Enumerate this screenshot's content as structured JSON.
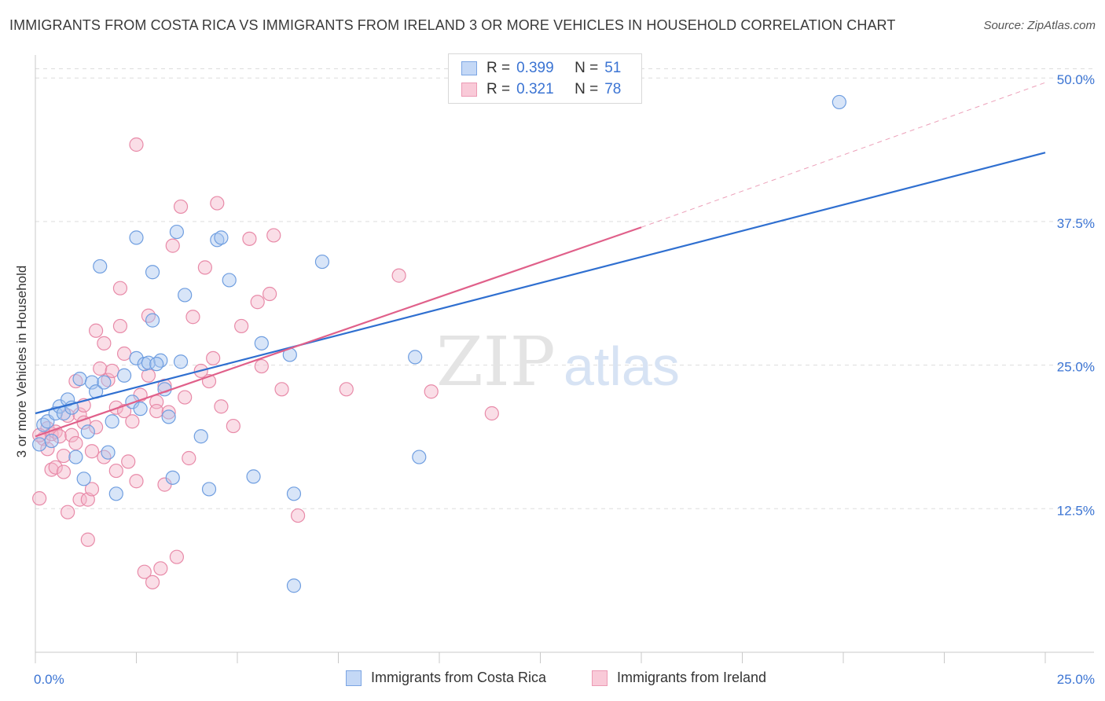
{
  "title": "IMMIGRANTS FROM COSTA RICA VS IMMIGRANTS FROM IRELAND 3 OR MORE VEHICLES IN HOUSEHOLD CORRELATION CHART",
  "source": "Source: ZipAtlas.com",
  "legend": {
    "rows": [
      {
        "r_label": "R =",
        "r_value": "0.399",
        "n_label": "N =",
        "n_value": "51"
      },
      {
        "r_label": "R =",
        "r_value": "0.321",
        "n_label": "N =",
        "n_value": "78"
      }
    ]
  },
  "colors": {
    "blue_fill": "#a9c6f0",
    "blue_stroke": "#6f9ee0",
    "blue_line": "#2f6fd0",
    "pink_fill": "#f5b6c9",
    "pink_stroke": "#e88aa8",
    "pink_line": "#e0608a",
    "tick_label": "#3b74d3",
    "grid": "#dddddd"
  },
  "chart_data": {
    "type": "scatter",
    "title": "IMMIGRANTS FROM COSTA RICA VS IMMIGRANTS FROM IRELAND 3 OR MORE VEHICLES IN HOUSEHOLD CORRELATION CHART",
    "xlabel": "",
    "ylabel": "3 or more Vehicles in Household",
    "xlim": [
      0,
      25
    ],
    "ylim": [
      0,
      52
    ],
    "x_tick_labels": [
      "0.0%",
      "25.0%"
    ],
    "y_ticks": [
      12.5,
      25.0,
      37.5,
      50.0
    ],
    "y_tick_labels": [
      "12.5%",
      "25.0%",
      "37.5%",
      "50.0%"
    ],
    "watermark": "ZIPatlas",
    "series": [
      {
        "name": "Immigrants from Costa Rica",
        "color": "blue",
        "trend": {
          "x": [
            0,
            25
          ],
          "y": [
            20.8,
            43.5
          ],
          "dashed_extension": false
        },
        "points": [
          [
            0.1,
            18.1
          ],
          [
            0.2,
            19.8
          ],
          [
            0.3,
            20.1
          ],
          [
            0.4,
            18.4
          ],
          [
            0.5,
            20.8
          ],
          [
            0.6,
            21.4
          ],
          [
            0.7,
            20.8
          ],
          [
            0.8,
            22.0
          ],
          [
            0.9,
            21.3
          ],
          [
            1.0,
            17.0
          ],
          [
            1.1,
            23.8
          ],
          [
            1.2,
            15.1
          ],
          [
            1.3,
            19.2
          ],
          [
            1.4,
            23.5
          ],
          [
            1.5,
            22.7
          ],
          [
            1.6,
            33.6
          ],
          [
            1.7,
            23.5
          ],
          [
            1.8,
            17.4
          ],
          [
            1.9,
            20.1
          ],
          [
            2.0,
            13.8
          ],
          [
            2.2,
            24.1
          ],
          [
            2.4,
            21.8
          ],
          [
            2.5,
            25.6
          ],
          [
            2.5,
            36.1
          ],
          [
            2.6,
            21.2
          ],
          [
            2.7,
            25.1
          ],
          [
            2.8,
            25.2
          ],
          [
            2.9,
            33.1
          ],
          [
            2.9,
            28.9
          ],
          [
            3.1,
            25.4
          ],
          [
            3.2,
            22.9
          ],
          [
            3.3,
            20.5
          ],
          [
            3.4,
            15.2
          ],
          [
            3.5,
            36.6
          ],
          [
            3.6,
            25.3
          ],
          [
            3.7,
            31.1
          ],
          [
            4.1,
            18.8
          ],
          [
            4.3,
            14.2
          ],
          [
            4.5,
            35.9
          ],
          [
            4.6,
            36.1
          ],
          [
            4.8,
            32.4
          ],
          [
            5.4,
            15.3
          ],
          [
            5.6,
            26.9
          ],
          [
            6.3,
            25.9
          ],
          [
            6.4,
            13.8
          ],
          [
            6.4,
            5.8
          ],
          [
            7.1,
            34.0
          ],
          [
            9.4,
            25.7
          ],
          [
            9.5,
            17.0
          ],
          [
            19.9,
            47.9
          ],
          [
            3.0,
            25.1
          ]
        ]
      },
      {
        "name": "Immigrants from Ireland",
        "color": "pink",
        "trend": {
          "x": [
            0,
            15
          ],
          "y": [
            18.8,
            37.0
          ],
          "dashed_extension": true,
          "extension_to": [
            25,
            49.6
          ]
        },
        "points": [
          [
            0.1,
            13.4
          ],
          [
            0.2,
            18.6
          ],
          [
            0.3,
            19.5
          ],
          [
            0.3,
            17.7
          ],
          [
            0.4,
            19.0
          ],
          [
            0.4,
            15.9
          ],
          [
            0.5,
            16.1
          ],
          [
            0.5,
            19.2
          ],
          [
            0.6,
            18.8
          ],
          [
            0.7,
            17.1
          ],
          [
            0.7,
            15.7
          ],
          [
            0.8,
            20.6
          ],
          [
            0.8,
            12.2
          ],
          [
            0.9,
            18.9
          ],
          [
            1.0,
            23.6
          ],
          [
            1.0,
            18.2
          ],
          [
            1.1,
            20.7
          ],
          [
            1.1,
            13.3
          ],
          [
            1.2,
            21.5
          ],
          [
            1.2,
            20.0
          ],
          [
            1.3,
            13.3
          ],
          [
            1.3,
            9.8
          ],
          [
            1.4,
            17.5
          ],
          [
            1.4,
            14.2
          ],
          [
            1.5,
            28.0
          ],
          [
            1.5,
            19.6
          ],
          [
            1.6,
            24.7
          ],
          [
            1.7,
            26.9
          ],
          [
            1.7,
            17.0
          ],
          [
            1.8,
            23.7
          ],
          [
            1.9,
            24.5
          ],
          [
            2.0,
            21.3
          ],
          [
            2.0,
            15.8
          ],
          [
            2.1,
            31.7
          ],
          [
            2.1,
            28.4
          ],
          [
            2.2,
            26.0
          ],
          [
            2.2,
            21.0
          ],
          [
            2.3,
            16.6
          ],
          [
            2.4,
            20.1
          ],
          [
            2.5,
            44.2
          ],
          [
            2.5,
            14.9
          ],
          [
            2.6,
            22.4
          ],
          [
            2.7,
            7.0
          ],
          [
            2.8,
            29.3
          ],
          [
            2.8,
            24.1
          ],
          [
            2.9,
            6.1
          ],
          [
            3.0,
            21.8
          ],
          [
            3.0,
            21.0
          ],
          [
            3.1,
            7.3
          ],
          [
            3.2,
            14.6
          ],
          [
            3.2,
            23.2
          ],
          [
            3.3,
            20.9
          ],
          [
            3.4,
            35.4
          ],
          [
            3.5,
            8.3
          ],
          [
            3.6,
            38.8
          ],
          [
            3.7,
            22.2
          ],
          [
            3.8,
            16.9
          ],
          [
            3.9,
            29.2
          ],
          [
            4.1,
            24.5
          ],
          [
            4.2,
            33.5
          ],
          [
            4.3,
            23.6
          ],
          [
            4.4,
            25.6
          ],
          [
            4.5,
            39.1
          ],
          [
            4.6,
            21.4
          ],
          [
            4.9,
            19.7
          ],
          [
            5.1,
            28.4
          ],
          [
            5.3,
            36.0
          ],
          [
            5.5,
            30.5
          ],
          [
            5.6,
            24.9
          ],
          [
            5.8,
            31.2
          ],
          [
            5.9,
            36.3
          ],
          [
            6.1,
            22.9
          ],
          [
            6.5,
            11.9
          ],
          [
            7.7,
            22.9
          ],
          [
            9.0,
            32.8
          ],
          [
            9.8,
            22.7
          ],
          [
            11.3,
            20.8
          ],
          [
            0.1,
            18.9
          ]
        ]
      }
    ]
  },
  "bottom_legend": [
    "Immigrants from Costa Rica",
    "Immigrants from Ireland"
  ]
}
